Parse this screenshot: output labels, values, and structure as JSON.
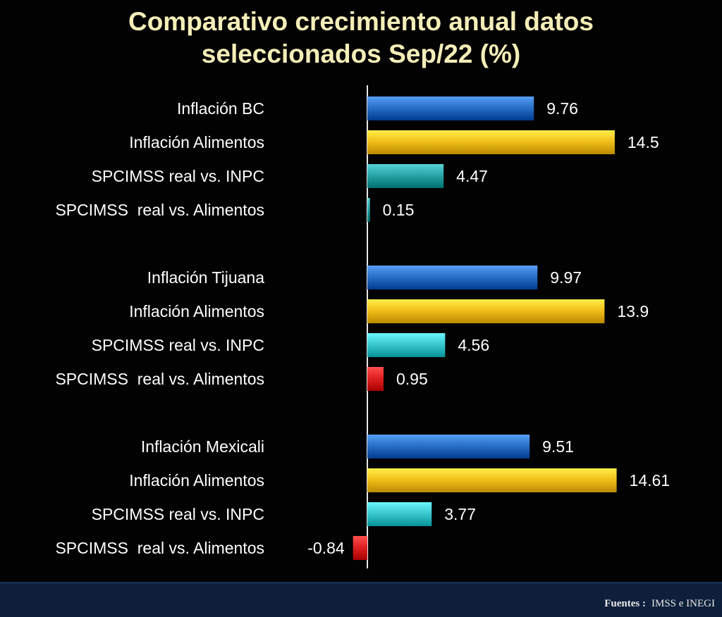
{
  "chart_data": {
    "type": "bar",
    "orientation": "horizontal",
    "title": "Comparativo crecimiento anual datos seleccionados Sep/22 (%)",
    "title_lines": [
      "Comparativo crecimiento anual datos",
      "seleccionados Sep/22 (%)"
    ],
    "categories": [
      "Inflación BC",
      "Inflación Alimentos",
      "SPCIMSS real vs. INPC",
      "SPCIMSS  real vs. Alimentos",
      "Inflación Tijuana",
      "Inflación Alimentos",
      "SPCIMSS real vs. INPC",
      "SPCIMSS  real vs. Alimentos",
      "Inflación Mexicali",
      "Inflación Alimentos",
      "SPCIMSS real vs. INPC",
      "SPCIMSS  real vs. Alimentos"
    ],
    "values": [
      9.76,
      14.5,
      4.47,
      0.15,
      9.97,
      13.9,
      4.56,
      0.95,
      9.51,
      14.61,
      3.77,
      -0.84
    ],
    "value_labels": [
      "9.76",
      "14.5",
      "4.47",
      "0.15",
      "9.97",
      "13.9",
      "4.56",
      "0.95",
      "9.51",
      "14.61",
      "3.77",
      "-0.84"
    ],
    "group_breaks": [
      4,
      8
    ],
    "bar_colors": [
      "#2a72c8",
      "#f2c11c",
      "#2aa6a8",
      "#2aa6a8",
      "#2a72c8",
      "#f2c11c",
      "#3ccad0",
      "#e02222",
      "#2a72c8",
      "#f2c11c",
      "#3ccad0",
      "#e02222"
    ],
    "xlim": [
      -1,
      15
    ],
    "xlabel": "",
    "ylabel": "",
    "grid": false,
    "legend": "none"
  },
  "footer": {
    "label": "Fuentes :",
    "sources": "IMSS e  INEGI",
    "background_color": "#0d1f3b"
  }
}
